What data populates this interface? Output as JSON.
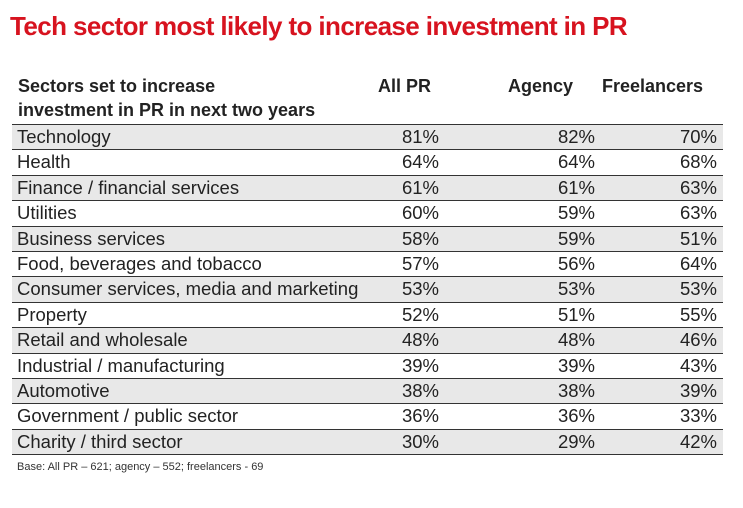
{
  "chart_data": {
    "type": "table",
    "title": "Tech sector most likely to increase investment in PR",
    "columns": [
      "Sectors set to increase investment in PR in next two years",
      "All PR",
      "Agency",
      "Freelancers"
    ],
    "header_lines": [
      "Sectors set to increase",
      "investment in PR in next two years"
    ],
    "rows": [
      {
        "sector": "Technology",
        "all_pr": "81%",
        "agency": "82%",
        "freelancers": "70%"
      },
      {
        "sector": "Health",
        "all_pr": "64%",
        "agency": "64%",
        "freelancers": "68%"
      },
      {
        "sector": "Finance / financial services",
        "all_pr": "61%",
        "agency": "61%",
        "freelancers": "63%"
      },
      {
        "sector": "Utilities",
        "all_pr": "60%",
        "agency": "59%",
        "freelancers": "63%"
      },
      {
        "sector": "Business services",
        "all_pr": "58%",
        "agency": "59%",
        "freelancers": "51%"
      },
      {
        "sector": "Food, beverages and tobacco",
        "all_pr": "57%",
        "agency": "56%",
        "freelancers": "64%"
      },
      {
        "sector": "Consumer services, media and marketing",
        "all_pr": "53%",
        "agency": "53%",
        "freelancers": "53%"
      },
      {
        "sector": "Property",
        "all_pr": "52%",
        "agency": "51%",
        "freelancers": "55%"
      },
      {
        "sector": "Retail and wholesale",
        "all_pr": "48%",
        "agency": "48%",
        "freelancers": "46%"
      },
      {
        "sector": "Industrial / manufacturing",
        "all_pr": "39%",
        "agency": "39%",
        "freelancers": "43%"
      },
      {
        "sector": "Automotive",
        "all_pr": "38%",
        "agency": "38%",
        "freelancers": "39%"
      },
      {
        "sector": "Government / public sector",
        "all_pr": "36%",
        "agency": "36%",
        "freelancers": "33%"
      },
      {
        "sector": "Charity / third sector",
        "all_pr": "30%",
        "agency": "29%",
        "freelancers": "42%"
      }
    ],
    "note": "Base: All PR – 621; agency – 552; freelancers - 69",
    "colors": {
      "title": "#d7131f",
      "stripe": "#e8e8e8",
      "rule": "#333333"
    }
  }
}
